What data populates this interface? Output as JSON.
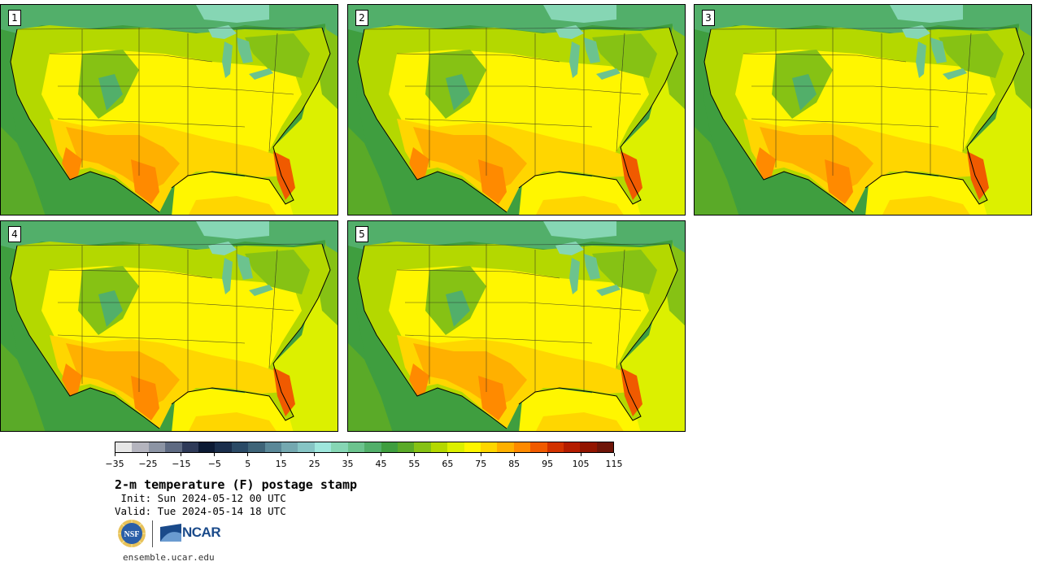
{
  "panels": [
    {
      "label": "1"
    },
    {
      "label": "2"
    },
    {
      "label": "3"
    },
    {
      "label": "4"
    },
    {
      "label": "5"
    }
  ],
  "colorbar": {
    "colors": [
      "#e6e6e6",
      "#b4b4be",
      "#8c94a4",
      "#5e6a82",
      "#2e3a58",
      "#0c1a34",
      "#1a2e4c",
      "#2a4a66",
      "#3e6478",
      "#5a8898",
      "#74a8b0",
      "#86c4c4",
      "#9ee6dc",
      "#86d6b4",
      "#6cc38e",
      "#52af6a",
      "#3f9e3f",
      "#5aaa28",
      "#86c214",
      "#b4d800",
      "#dcf000",
      "#fff600",
      "#ffd600",
      "#ffb000",
      "#ff8a00",
      "#f05a00",
      "#d23200",
      "#b41c00",
      "#921400",
      "#6e1408"
    ],
    "tick_labels": [
      "−35",
      "−25",
      "−15",
      "−5",
      "5",
      "15",
      "25",
      "35",
      "45",
      "55",
      "65",
      "75",
      "85",
      "95",
      "105",
      "115"
    ]
  },
  "title": "2-m temperature (F) postage stamp",
  "init": " Init: Sun 2024-05-12 00 UTC",
  "valid": "Valid: Tue 2024-05-14 18 UTC",
  "logos": {
    "nsf": "NSF",
    "ncar": "NCAR"
  },
  "site": "ensemble.ucar.edu"
}
